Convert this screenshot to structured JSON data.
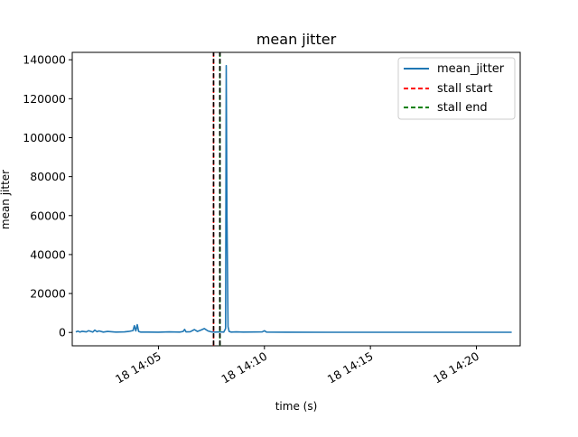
{
  "chart_data": {
    "type": "line",
    "title": "mean jitter",
    "xlabel": "time (s)",
    "ylabel": "mean jitter",
    "x_axis_type": "time",
    "xlim": [
      "18 14:00:56",
      "18 14:22:04"
    ],
    "ylim": [
      -6850,
      143800
    ],
    "x_ticks": [
      {
        "label": "18 14:05",
        "value": "18 14:05:00"
      },
      {
        "label": "18 14:10",
        "value": "18 14:10:00"
      },
      {
        "label": "18 14:15",
        "value": "18 14:15:00"
      },
      {
        "label": "18 14:20",
        "value": "18 14:20:00"
      }
    ],
    "y_ticks": [
      0,
      20000,
      40000,
      60000,
      80000,
      100000,
      120000,
      140000
    ],
    "y_tick_labels": [
      "0",
      "20000",
      "40000",
      "60000",
      "80000",
      "100000",
      "120000",
      "140000"
    ],
    "grid": false,
    "legend_position": "top-right",
    "series": [
      {
        "name": "mean_jitter",
        "color": "#1f77b4",
        "x": [
          "18 14:01:06",
          "18 14:01:12",
          "18 14:01:18",
          "18 14:01:24",
          "18 14:01:36",
          "18 14:01:42",
          "18 14:01:54",
          "18 14:02:00",
          "18 14:02:06",
          "18 14:02:12",
          "18 14:02:24",
          "18 14:02:36",
          "18 14:03:00",
          "18 14:03:24",
          "18 14:03:36",
          "18 14:03:48",
          "18 14:03:52",
          "18 14:03:56",
          "18 14:04:00",
          "18 14:04:04",
          "18 14:04:10",
          "18 14:04:30",
          "18 14:05:00",
          "18 14:05:30",
          "18 14:06:00",
          "18 14:06:10",
          "18 14:06:14",
          "18 14:06:18",
          "18 14:06:30",
          "18 14:06:42",
          "18 14:06:50",
          "18 14:07:00",
          "18 14:07:10",
          "18 14:07:20",
          "18 14:07:30",
          "18 14:07:40",
          "18 14:07:55",
          "18 14:08:05",
          "18 14:08:10",
          "18 14:08:12",
          "18 14:08:14",
          "18 14:08:17",
          "18 14:08:20",
          "18 14:08:26",
          "18 14:08:40",
          "18 14:09:00",
          "18 14:09:30",
          "18 14:09:54",
          "18 14:10:00",
          "18 14:10:06",
          "18 14:11:00",
          "18 14:13:00",
          "18 14:15:00",
          "18 14:17:00",
          "18 14:19:00",
          "18 14:21:00",
          "18 14:21:40"
        ],
        "y": [
          300,
          700,
          200,
          600,
          300,
          900,
          200,
          1200,
          400,
          800,
          200,
          500,
          200,
          300,
          500,
          1000,
          3500,
          800,
          4000,
          500,
          200,
          200,
          150,
          300,
          200,
          500,
          1600,
          300,
          400,
          1500,
          500,
          1200,
          2000,
          800,
          300,
          200,
          300,
          200,
          2000,
          137000,
          60000,
          3000,
          500,
          200,
          300,
          200,
          250,
          300,
          900,
          200,
          150,
          120,
          100,
          110,
          100,
          90,
          100
        ]
      },
      {
        "name": "stall start",
        "color": "#ff0000",
        "style": "dashed",
        "x": [
          "18 14:07:36"
        ]
      },
      {
        "name": "stall end",
        "color": "#008000",
        "style": "dashed",
        "x": [
          "18 14:07:54"
        ]
      }
    ],
    "extra_lines": [
      {
        "color": "#000000",
        "style": "dashed",
        "x": [
          "18 14:07:36",
          "18 14:07:54"
        ]
      }
    ]
  }
}
